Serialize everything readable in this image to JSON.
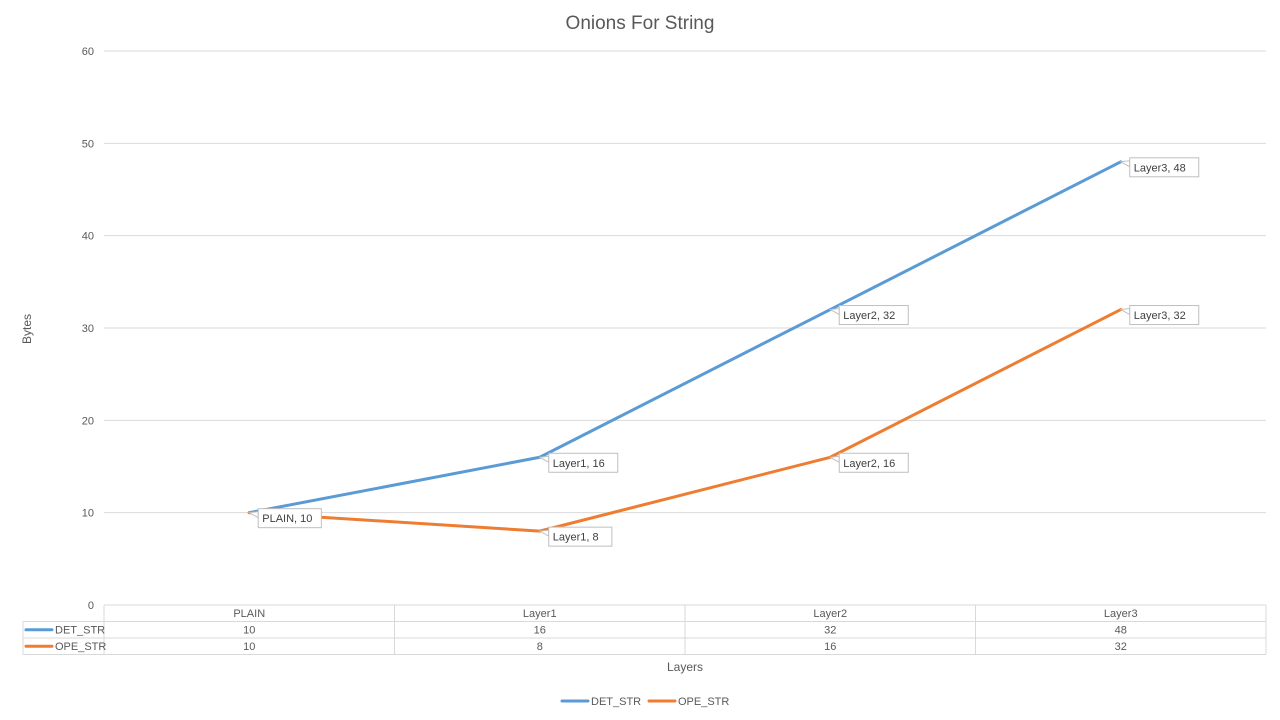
{
  "chart_data": {
    "type": "line",
    "title": "Onions For String",
    "xlabel": "Layers",
    "ylabel": "Bytes",
    "ylim": [
      0,
      60
    ],
    "yticks": [
      0,
      10,
      20,
      30,
      40,
      50,
      60
    ],
    "categories": [
      "PLAIN",
      "Layer1",
      "Layer2",
      "Layer3"
    ],
    "series": [
      {
        "name": "DET_STR",
        "color": "#5b9bd5",
        "values": [
          10,
          16,
          32,
          48
        ],
        "data_labels": [
          "PLAIN, 10",
          "Layer1, 16",
          "Layer2, 32",
          "Layer3, 48"
        ]
      },
      {
        "name": "OPE_STR",
        "color": "#ed7d31",
        "values": [
          10,
          8,
          16,
          32
        ],
        "data_labels": [
          "",
          "Layer1, 8",
          "Layer2, 16",
          "Layer3, 32"
        ]
      }
    ],
    "grid": true,
    "legend": "bottom",
    "data_table": true
  }
}
